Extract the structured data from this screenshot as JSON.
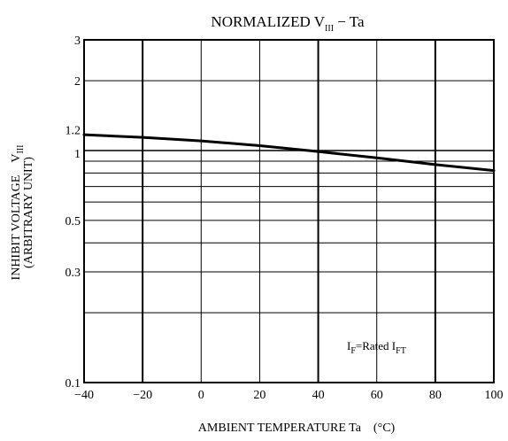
{
  "chart_data": {
    "type": "line",
    "title": {
      "main": "NORMALIZED V",
      "sub": "III",
      "rest": " − Ta"
    },
    "xlabel": "AMBIENT TEMPERATURE Ta　(°C)",
    "ylabel": {
      "line1_main": "INHIBIT VOLTAGE　V",
      "line1_sub": "III",
      "line2": "(ARBITRARY UNIT)"
    },
    "x_scale": "linear",
    "y_scale": "log",
    "xlim": [
      -40,
      100
    ],
    "ylim": [
      0.1,
      3
    ],
    "x_ticks": [
      -40,
      -20,
      0,
      20,
      40,
      60,
      80,
      100
    ],
    "x_tick_labels": [
      "−40",
      "−20",
      "0",
      "20",
      "40",
      "60",
      "80",
      "100"
    ],
    "y_ticks": [
      0.1,
      0.3,
      0.5,
      1,
      1.2,
      2,
      3
    ],
    "y_tick_labels": [
      "0.1",
      "0.3",
      "0.5",
      "1",
      "1.2",
      "2",
      "3"
    ],
    "y_gridlines": [
      0.2,
      0.3,
      0.4,
      0.5,
      0.6,
      0.7,
      0.8,
      0.9,
      1,
      2
    ],
    "grid": true,
    "annotation": {
      "main1": "I",
      "sub1": "F",
      "middle": "=Rated I",
      "sub2": "FT"
    },
    "series": [
      {
        "x": [
          -40,
          -20,
          0,
          20,
          40,
          60,
          80,
          100
        ],
        "y": [
          1.17,
          1.14,
          1.1,
          1.05,
          0.99,
          0.93,
          0.87,
          0.82
        ]
      }
    ]
  }
}
